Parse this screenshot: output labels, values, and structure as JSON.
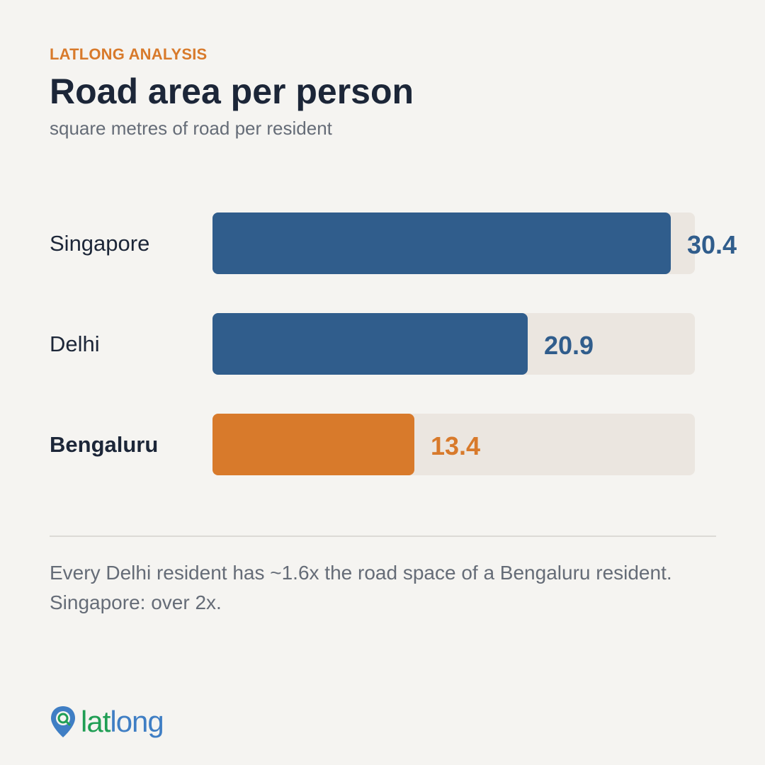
{
  "header": {
    "kicker": "LATLONG ANALYSIS",
    "title": "Road area per person",
    "subtitle": "square metres of road per resident"
  },
  "chart_data": {
    "type": "bar",
    "orientation": "horizontal",
    "categories": [
      "Singapore",
      "Delhi",
      "Bengaluru"
    ],
    "values": [
      30.4,
      20.9,
      13.4
    ],
    "value_labels": [
      "30.4",
      "20.9",
      "13.4"
    ],
    "highlight": "Bengaluru",
    "xlim": [
      0,
      32
    ],
    "colors": {
      "default": "#305d8c",
      "highlight": "#d87a2b",
      "track": "#ebe6e0"
    },
    "grid": false,
    "legend": "none"
  },
  "footnote": {
    "line1": "Every Delhi resident has ~1.6x the road space of a Bengaluru resident.",
    "line2": "Singapore: over 2x."
  },
  "logo": {
    "part1": "lat",
    "part2": "long",
    "icon": "map-pin-icon",
    "colors": {
      "green": "#1f9e54",
      "blue": "#3f7ec4"
    }
  }
}
